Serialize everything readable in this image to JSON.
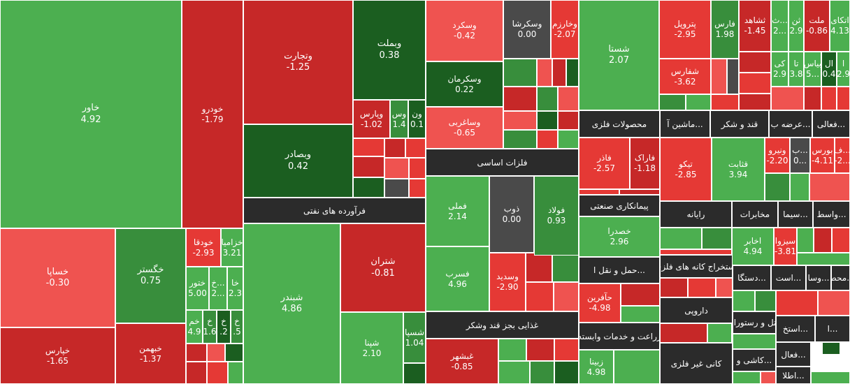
{
  "chart_data": {
    "type": "heatmap",
    "title": "",
    "colors": {
      "strong_red": "#c62828",
      "red": "#e53935",
      "light_red": "#ef5350",
      "neutral": "#4a4a4a",
      "light_green": "#4caf50",
      "green": "#388e3c",
      "dark_green": "#1b5e20",
      "header": "#2b2b2b"
    },
    "sectors": [
      "فرآورده های نفتی",
      "فلزات اساسی",
      "غذایی بجز قند وشکر",
      "محصولات فلزی",
      "ماشین آ...",
      "قند و شکر",
      "عرضه ب...",
      "فعالی...",
      "پیمانکاری صنعتی",
      "رایانه",
      "مخابرات",
      "سیما...",
      "واسط...",
      "حمل و نقل ا...",
      "استخراج کانه های فلزی",
      "دستگا...",
      "است...",
      "وسا...",
      "محص...",
      "داروپی",
      "هتل و رستوران",
      "استخ...",
      "ا...",
      "زراعت و خدمات وابسته",
      "کانی غیر فلزی",
      "کاشی و...",
      "فعال...",
      "اطلا..."
    ],
    "tiles": [
      {
        "name": "خاور",
        "value": "4.92"
      },
      {
        "name": "خودرو",
        "value": "-1.79"
      },
      {
        "name": "وتجارت",
        "value": "-1.25"
      },
      {
        "name": "وبملت",
        "value": "0.38"
      },
      {
        "name": "وبصادر",
        "value": "0.42"
      },
      {
        "name": "وپارس",
        "value": "-1.02"
      },
      {
        "name": "وس",
        "value": "1.4"
      },
      {
        "name": "ون",
        "value": "0.1"
      },
      {
        "name": "وسکرد",
        "value": "-0.42"
      },
      {
        "name": "وسکرشا",
        "value": "0.00"
      },
      {
        "name": "وخارزم",
        "value": "-2.07"
      },
      {
        "name": "وسکرمان",
        "value": "0.22"
      },
      {
        "name": "وساغربی",
        "value": "-0.65"
      },
      {
        "name": "شستا",
        "value": "2.07"
      },
      {
        "name": "پتروپل",
        "value": "-2.95"
      },
      {
        "name": "فارس",
        "value": "1.98"
      },
      {
        "name": "ثشاهد",
        "value": "-1.45"
      },
      {
        "name": "ث...",
        "value": "2..."
      },
      {
        "name": "ثن",
        "value": "2.9"
      },
      {
        "name": "ملت",
        "value": "-0.86"
      },
      {
        "name": "اتکای",
        "value": "4.13"
      },
      {
        "name": "کی",
        "value": "2.9"
      },
      {
        "name": "تا",
        "value": "3.8"
      },
      {
        "name": "بیاس",
        "value": "5..."
      },
      {
        "name": "ال",
        "value": "0.4"
      },
      {
        "name": "ا",
        "value": "2.9"
      },
      {
        "name": "شفارس",
        "value": "-3.62"
      },
      {
        "name": "خساپا",
        "value": "-0.30"
      },
      {
        "name": "خگستر",
        "value": "0.75"
      },
      {
        "name": "خودقا",
        "value": "-2.93"
      },
      {
        "name": "خزامیا",
        "value": "3.21"
      },
      {
        "name": "ختور",
        "value": "5.00"
      },
      {
        "name": "خ...",
        "value": "2..."
      },
      {
        "name": "خا",
        "value": "2.3"
      },
      {
        "name": "خم",
        "value": "4.9"
      },
      {
        "name": "خ",
        "value": "1.6"
      },
      {
        "name": "خ",
        "value": ".2"
      },
      {
        "name": "خ",
        "value": ".5"
      },
      {
        "name": "خپارس",
        "value": "-1.65"
      },
      {
        "name": "خبهمن",
        "value": "-1.37"
      },
      {
        "name": "شبندر",
        "value": "4.86"
      },
      {
        "name": "شتران",
        "value": "-0.81"
      },
      {
        "name": "شپنا",
        "value": "2.10"
      },
      {
        "name": "شسپا",
        "value": "1.04"
      },
      {
        "name": "فملی",
        "value": "2.14"
      },
      {
        "name": "ذوب",
        "value": "0.00"
      },
      {
        "name": "فولاد",
        "value": "0.93"
      },
      {
        "name": "فسرب",
        "value": "4.96"
      },
      {
        "name": "وسدید",
        "value": "-2.90"
      },
      {
        "name": "غبشهر",
        "value": "-0.85"
      },
      {
        "name": "فاذر",
        "value": "-2.57"
      },
      {
        "name": "فاراک",
        "value": "-1.18"
      },
      {
        "name": "تیکو",
        "value": "-2.85"
      },
      {
        "name": "قثابت",
        "value": "3.94"
      },
      {
        "name": "ونیرو",
        "value": "-2.20"
      },
      {
        "name": "ب...",
        "value": "0..."
      },
      {
        "name": "بورس",
        "value": "-4.11"
      },
      {
        "name": "ف...",
        "value": "-2..."
      },
      {
        "name": "خصدرا",
        "value": "2.96"
      },
      {
        "name": "اخابر",
        "value": "4.94"
      },
      {
        "name": "سیزوا",
        "value": "-3.81"
      },
      {
        "name": "حآفرین",
        "value": "-4.98"
      },
      {
        "name": "زبینا",
        "value": "4.98"
      }
    ]
  }
}
